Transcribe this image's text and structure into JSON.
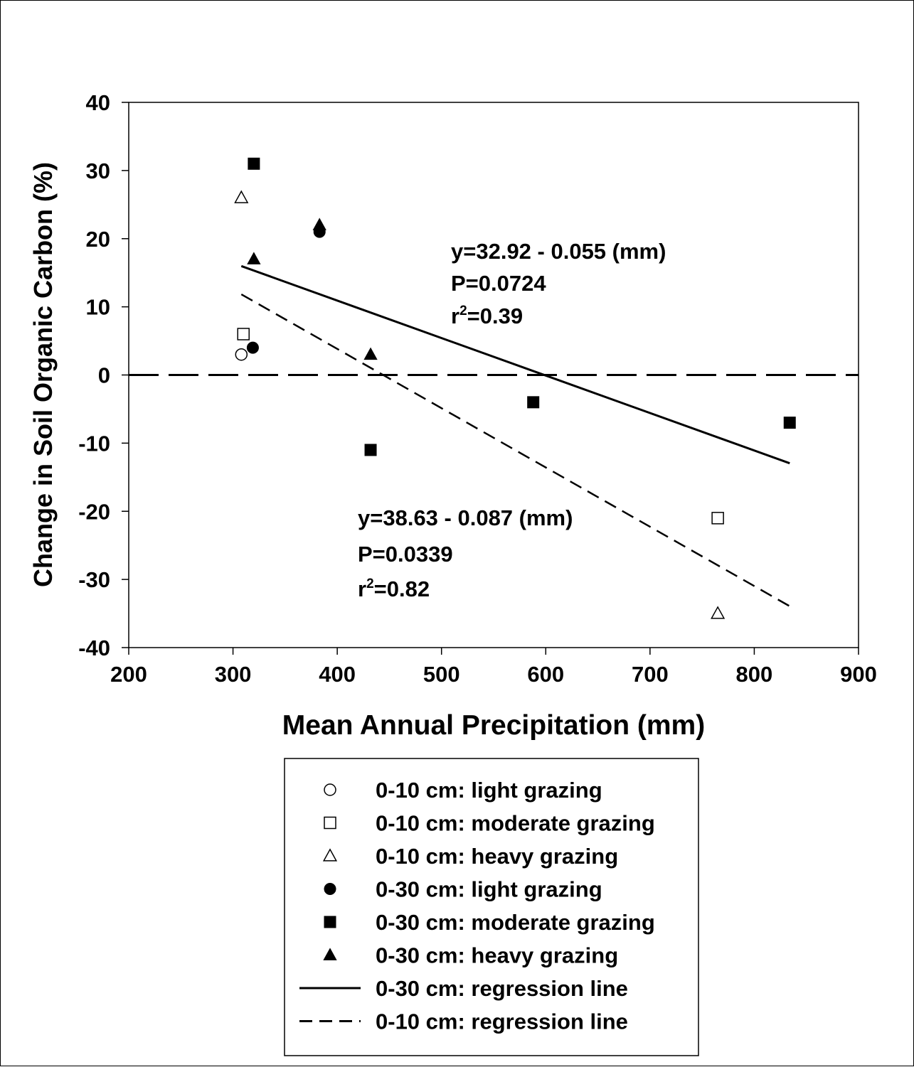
{
  "chart_data": {
    "type": "scatter",
    "xlabel": "Mean Annual Precipitation (mm)",
    "ylabel": "Change in Soil Organic Carbon (%)",
    "xlim": [
      200,
      900
    ],
    "ylim": [
      -40,
      40
    ],
    "xticks": [
      200,
      300,
      400,
      500,
      600,
      700,
      800,
      900
    ],
    "yticks": [
      -40,
      -30,
      -20,
      -10,
      0,
      10,
      20,
      30,
      40
    ],
    "grid": false,
    "legend_position": "bottom",
    "zero_line": {
      "y": 0,
      "style": "long-dash"
    },
    "series": [
      {
        "name": "0-10 cm: light grazing",
        "marker": "circle",
        "filled": false,
        "points": [
          {
            "x": 308,
            "y": 3
          }
        ]
      },
      {
        "name": "0-10 cm: moderate grazing",
        "marker": "square",
        "filled": false,
        "points": [
          {
            "x": 310,
            "y": 6
          },
          {
            "x": 765,
            "y": -21
          }
        ]
      },
      {
        "name": "0-10 cm: heavy grazing",
        "marker": "triangle",
        "filled": false,
        "points": [
          {
            "x": 308,
            "y": 26
          },
          {
            "x": 765,
            "y": -35
          }
        ]
      },
      {
        "name": "0-30 cm: light grazing",
        "marker": "circle",
        "filled": true,
        "points": [
          {
            "x": 319,
            "y": 4
          },
          {
            "x": 383,
            "y": 21
          }
        ]
      },
      {
        "name": "0-30 cm: moderate grazing",
        "marker": "square",
        "filled": true,
        "points": [
          {
            "x": 320,
            "y": 31
          },
          {
            "x": 432,
            "y": -11
          },
          {
            "x": 588,
            "y": -4
          },
          {
            "x": 834,
            "y": -7
          }
        ]
      },
      {
        "name": "0-30 cm: heavy grazing",
        "marker": "triangle",
        "filled": true,
        "points": [
          {
            "x": 320,
            "y": 17
          },
          {
            "x": 383,
            "y": 22
          },
          {
            "x": 432,
            "y": 3
          }
        ]
      }
    ],
    "regressions": [
      {
        "name": "0-30 cm: regression line",
        "style": "solid",
        "intercept": 32.92,
        "slope": -0.055,
        "x_range": [
          308,
          834
        ],
        "annotation": {
          "equation": "y=32.92 - 0.055 (mm)",
          "p": "P=0.0724",
          "r2_prefix": "r",
          "r2_sup": "2",
          "r2_value": "=0.39"
        }
      },
      {
        "name": "0-10 cm: regression line",
        "style": "dashed",
        "intercept": 38.63,
        "slope": -0.087,
        "x_range": [
          308,
          834
        ],
        "annotation": {
          "equation": "y=38.63 - 0.087 (mm)",
          "p": "P=0.0339",
          "r2_prefix": "r",
          "r2_sup": "2",
          "r2_value": "=0.82"
        }
      }
    ]
  }
}
